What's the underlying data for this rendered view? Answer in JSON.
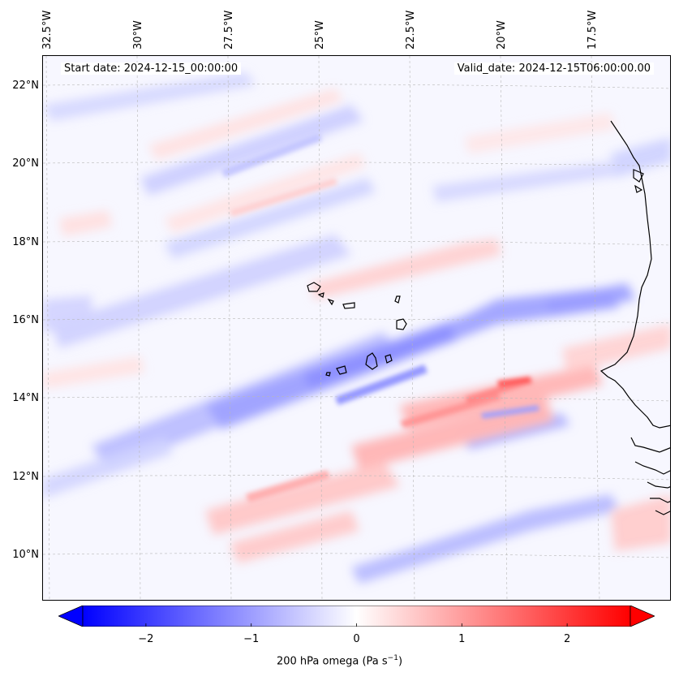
{
  "map": {
    "lon_labels": [
      "32.5°W",
      "30°W",
      "27.5°W",
      "25°W",
      "22.5°W",
      "20°W",
      "17.5°W"
    ],
    "lat_labels": [
      "22°N",
      "20°N",
      "18°N",
      "16°N",
      "14°N",
      "12°N",
      "10°N"
    ],
    "start_date": "Start date: 2024-12-15_00:00:00",
    "valid_date": "Valid_date: 2024-12-15T06:00:00.00",
    "extent": {
      "lon_min": -32.5,
      "lon_max": -15.8,
      "lat_min": 8.9,
      "lat_max": 22.8
    }
  },
  "colorbar": {
    "ticks": [
      "−2",
      "−1",
      "0",
      "1",
      "2"
    ],
    "tick_values": [
      -2,
      -1,
      0,
      1,
      2
    ],
    "range": [
      -2.6,
      2.6
    ],
    "label_prefix": "200 hPa omega (Pa s",
    "label_sup": "−1",
    "label_suffix": ")",
    "cmap": "bwr",
    "colors": {
      "low": "#0000ff",
      "mid": "#ffffff",
      "high": "#ff0000"
    }
  }
}
